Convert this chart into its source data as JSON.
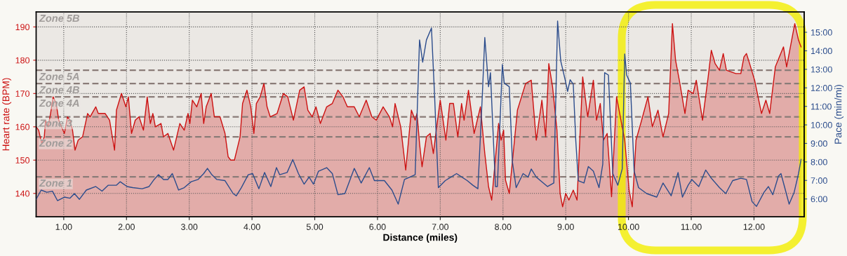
{
  "chart_data": {
    "type": "area",
    "xlabel": "Distance (miles)",
    "ylabel": "Heart rate (BPM)",
    "y2label": "Pace (min/mi)",
    "xlim": [
      0.56,
      12.8
    ],
    "ylim": [
      133,
      194.5
    ],
    "y2lim": [
      5.04,
      16.1
    ],
    "xticks": [
      {
        "value": 1,
        "label": "1.00"
      },
      {
        "value": 2,
        "label": "2.00"
      },
      {
        "value": 3,
        "label": "3.00"
      },
      {
        "value": 4,
        "label": "4.00"
      },
      {
        "value": 5,
        "label": "5.00"
      },
      {
        "value": 6,
        "label": "6.00"
      },
      {
        "value": 7,
        "label": "7.00"
      },
      {
        "value": 8,
        "label": "8.00"
      },
      {
        "value": 9,
        "label": "9.00"
      },
      {
        "value": 10,
        "label": "10.00"
      },
      {
        "value": 11,
        "label": "11.00"
      },
      {
        "value": 12,
        "label": "12.00"
      }
    ],
    "yticks": [
      140,
      150,
      160,
      170,
      180,
      190
    ],
    "y2ticks": [
      {
        "value": 6,
        "label": "6:00"
      },
      {
        "value": 7,
        "label": "7:00"
      },
      {
        "value": 8,
        "label": "8:00"
      },
      {
        "value": 9,
        "label": "9:00"
      },
      {
        "value": 10,
        "label": "10:00"
      },
      {
        "value": 11,
        "label": "11:00"
      },
      {
        "value": 12,
        "label": "12:00"
      },
      {
        "value": 13,
        "label": "13:00"
      },
      {
        "value": 14,
        "label": "14:00"
      },
      {
        "value": 15,
        "label": "15:00"
      }
    ],
    "grid": true,
    "line_style": "solid",
    "marker": "none",
    "bands": [
      {
        "axis": "y",
        "from": 177,
        "to": 194.5,
        "label": "Zone 5B",
        "color": "#e9e6e2"
      },
      {
        "axis": "y",
        "from": 173,
        "to": 177,
        "label": "Zone 5A",
        "color": "#e9e6e2"
      },
      {
        "axis": "y",
        "from": 169,
        "to": 173,
        "label": "Zone 4B",
        "color": "#e9e6e2"
      },
      {
        "axis": "y",
        "from": 163,
        "to": 169,
        "label": "Zone 4A",
        "color": "#e9e6e2"
      },
      {
        "axis": "y",
        "from": 157,
        "to": 163,
        "label": "Zone 3",
        "color": "#e9e6e2"
      },
      {
        "axis": "y",
        "from": 145,
        "to": 157,
        "label": "Zone 2",
        "color": "#e9e6e2"
      },
      {
        "axis": "y",
        "from": 133,
        "to": 145,
        "label": "Zone 1",
        "color": "#e9e6e2"
      }
    ],
    "ref_lines": [
      {
        "axis": "y",
        "value": 177,
        "color": "#8a7c78",
        "line_style": "dashed"
      },
      {
        "axis": "y",
        "value": 173,
        "color": "#8a7c78",
        "line_style": "dashed"
      },
      {
        "axis": "y",
        "value": 169,
        "color": "#8a7c78",
        "line_style": "dashed"
      },
      {
        "axis": "y",
        "value": 163,
        "color": "#8a7c78",
        "line_style": "dashed"
      },
      {
        "axis": "y",
        "value": 157,
        "color": "#8a7c78",
        "line_style": "dashed"
      },
      {
        "axis": "y",
        "value": 145,
        "color": "#8a7c78",
        "line_style": "dashed"
      }
    ],
    "series": [
      {
        "type": "area",
        "color": "#cc1111",
        "x": [
          0.56,
          0.6,
          0.65,
          0.69,
          0.71,
          0.75,
          0.79,
          0.83,
          0.88,
          0.92,
          1.01,
          1.06,
          1.1,
          1.14,
          1.18,
          1.23,
          1.3,
          1.38,
          1.42,
          1.51,
          1.55,
          1.66,
          1.73,
          1.81,
          1.84,
          1.92,
          1.99,
          2.03,
          2.08,
          2.14,
          2.2,
          2.27,
          2.33,
          2.38,
          2.42,
          2.46,
          2.55,
          2.59,
          2.66,
          2.75,
          2.85,
          2.92,
          2.98,
          3.01,
          3.05,
          3.12,
          3.19,
          3.23,
          3.27,
          3.35,
          3.4,
          3.49,
          3.57,
          3.62,
          3.66,
          3.72,
          3.81,
          3.85,
          3.92,
          3.98,
          4.03,
          4.07,
          4.13,
          4.19,
          4.24,
          4.29,
          4.4,
          4.5,
          4.57,
          4.66,
          4.76,
          4.83,
          4.89,
          4.96,
          5.02,
          5.09,
          5.19,
          5.28,
          5.37,
          5.45,
          5.52,
          5.63,
          5.71,
          5.82,
          5.91,
          5.98,
          6.09,
          6.19,
          6.24,
          6.28,
          6.37,
          6.45,
          6.54,
          6.6,
          6.63,
          6.67,
          6.71,
          6.78,
          6.84,
          6.89,
          6.95,
          7.0,
          7.09,
          7.15,
          7.21,
          7.28,
          7.34,
          7.38,
          7.45,
          7.54,
          7.64,
          7.71,
          7.77,
          7.82,
          7.93,
          7.97,
          8.01,
          8.04,
          8.1,
          8.23,
          8.36,
          8.45,
          8.53,
          8.62,
          8.68,
          8.73,
          8.79,
          8.86,
          8.91,
          8.95,
          9.0,
          9.05,
          9.12,
          9.18,
          9.27,
          9.35,
          9.44,
          9.49,
          9.55,
          9.6,
          9.66,
          9.73,
          9.81,
          9.87,
          9.94,
          10.01,
          10.06,
          10.12,
          10.21,
          10.31,
          10.38,
          10.47,
          10.55,
          10.64,
          10.7,
          10.75,
          10.81,
          10.9,
          10.95,
          11.03,
          11.08,
          11.18,
          11.27,
          11.32,
          11.38,
          11.45,
          11.51,
          11.56,
          11.71,
          11.79,
          11.84,
          11.88,
          11.93,
          12.01,
          12.12,
          12.19,
          12.25,
          12.34,
          12.47,
          12.52,
          12.65,
          12.71,
          12.75
        ],
        "values": [
          160,
          159,
          155,
          157,
          162,
          160,
          164,
          169,
          167,
          162,
          158,
          163,
          162,
          159,
          153,
          156,
          157,
          164,
          163,
          166,
          164,
          164,
          162,
          153,
          165,
          170,
          166,
          169,
          158,
          162,
          163,
          159,
          169,
          161,
          164,
          160,
          161,
          157,
          158,
          153,
          161,
          159,
          164,
          161,
          168,
          166,
          170,
          161,
          166,
          170,
          163,
          163,
          158,
          151,
          150,
          150,
          157,
          167,
          171,
          166,
          158,
          167,
          169,
          173,
          166,
          163,
          164,
          170,
          169,
          162,
          171,
          172,
          165,
          163,
          166,
          161,
          166,
          167,
          171,
          169,
          166,
          166,
          163,
          168,
          163,
          162,
          166,
          163,
          160,
          167,
          160,
          147,
          165,
          162,
          164,
          155,
          148,
          157,
          158,
          152,
          161,
          168,
          156,
          167,
          167,
          157,
          167,
          162,
          171,
          158,
          166,
          152,
          142,
          138,
          161,
          156,
          159,
          144,
          140,
          165,
          173,
          174,
          156,
          168,
          157,
          179,
          172,
          159,
          140,
          136,
          140,
          138,
          141,
          138,
          175,
          163,
          174,
          162,
          167,
          156,
          158,
          139,
          169,
          163,
          156,
          141,
          136,
          156,
          162,
          169,
          160,
          165,
          157,
          164,
          191,
          180,
          174,
          164,
          171,
          170,
          174,
          162,
          175,
          183,
          179,
          177,
          182,
          177,
          176,
          176,
          181,
          182,
          179,
          174,
          164,
          168,
          164,
          178,
          184,
          178,
          191,
          186,
          184
        ]
      },
      {
        "type": "line",
        "axis": "y2",
        "color": "#2b4c8c",
        "x": [
          0.56,
          0.64,
          0.73,
          0.82,
          0.9,
          1.01,
          1.1,
          1.17,
          1.25,
          1.36,
          1.51,
          1.61,
          1.71,
          1.84,
          1.9,
          2.01,
          2.1,
          2.25,
          2.36,
          2.44,
          2.51,
          2.59,
          2.66,
          2.73,
          2.83,
          2.92,
          3.03,
          3.14,
          3.23,
          3.29,
          3.36,
          3.44,
          3.57,
          3.7,
          3.75,
          3.83,
          3.94,
          4.01,
          4.11,
          4.2,
          4.3,
          4.39,
          4.44,
          4.56,
          4.65,
          4.74,
          4.83,
          4.91,
          4.98,
          5.06,
          5.19,
          5.28,
          5.37,
          5.48,
          5.63,
          5.74,
          5.87,
          5.95,
          6.11,
          6.23,
          6.33,
          6.43,
          6.6,
          6.67,
          6.72,
          6.78,
          6.86,
          6.91,
          6.97,
          7.08,
          7.26,
          7.43,
          7.52,
          7.6,
          7.67,
          7.71,
          7.77,
          7.8,
          7.88,
          7.91,
          7.99,
          8.02,
          8.1,
          8.15,
          8.21,
          8.32,
          8.4,
          8.45,
          8.53,
          8.71,
          8.81,
          8.87,
          8.92,
          8.99,
          9.03,
          9.07,
          9.12,
          9.16,
          9.2,
          9.29,
          9.36,
          9.44,
          9.53,
          9.59,
          9.62,
          9.68,
          9.75,
          9.83,
          9.9,
          9.94,
          9.97,
          10.03,
          10.09,
          10.16,
          10.29,
          10.45,
          10.55,
          10.68,
          10.79,
          10.86,
          10.95,
          11.01,
          11.12,
          11.23,
          11.32,
          11.45,
          11.55,
          11.66,
          11.79,
          11.88,
          11.97,
          12.04,
          12.16,
          12.23,
          12.3,
          12.39,
          12.43,
          12.49,
          12.56,
          12.64,
          12.71,
          12.75
        ],
        "values": [
          5.98,
          6.48,
          6.36,
          6.42,
          5.91,
          6.1,
          6.04,
          6.29,
          5.98,
          6.48,
          6.67,
          6.42,
          6.74,
          6.74,
          6.93,
          6.67,
          6.61,
          6.55,
          6.67,
          7.05,
          7.31,
          7.05,
          7.05,
          7.37,
          6.48,
          6.61,
          6.93,
          7.05,
          7.37,
          7.65,
          7.31,
          7.05,
          6.99,
          6.29,
          6.17,
          6.61,
          7.31,
          7.37,
          6.55,
          7.43,
          6.67,
          7.69,
          7.31,
          7.43,
          8.13,
          7.37,
          6.8,
          7.18,
          6.8,
          7.5,
          7.69,
          7.37,
          6.23,
          6.29,
          7.65,
          6.86,
          7.69,
          6.99,
          6.99,
          6.48,
          5.72,
          7.05,
          7.31,
          14.59,
          13.39,
          14.59,
          15.23,
          11.55,
          6.61,
          6.99,
          7.37,
          6.99,
          6.74,
          6.55,
          11.55,
          14.72,
          12.06,
          12.82,
          6.67,
          6.67,
          13.26,
          12.25,
          12.06,
          8.0,
          6.61,
          7.37,
          7.18,
          7.62,
          7.18,
          6.67,
          6.86,
          15.61,
          13.45,
          12.44,
          11.81,
          12.44,
          12.19,
          9.14,
          6.99,
          6.86,
          7.75,
          7.5,
          6.61,
          7.88,
          12.82,
          12.69,
          7.37,
          6.74,
          7.62,
          13.83,
          12.69,
          12.25,
          7.5,
          6.61,
          6.29,
          6.1,
          6.86,
          6.17,
          7.43,
          6.1,
          6.74,
          7.05,
          6.67,
          7.56,
          7.12,
          6.61,
          6.29,
          6.99,
          7.12,
          7.05,
          5.85,
          5.6,
          6.36,
          6.67,
          6.23,
          7.24,
          7.37,
          6.61,
          5.72,
          6.36,
          7.37,
          8.13
        ]
      }
    ]
  }
}
